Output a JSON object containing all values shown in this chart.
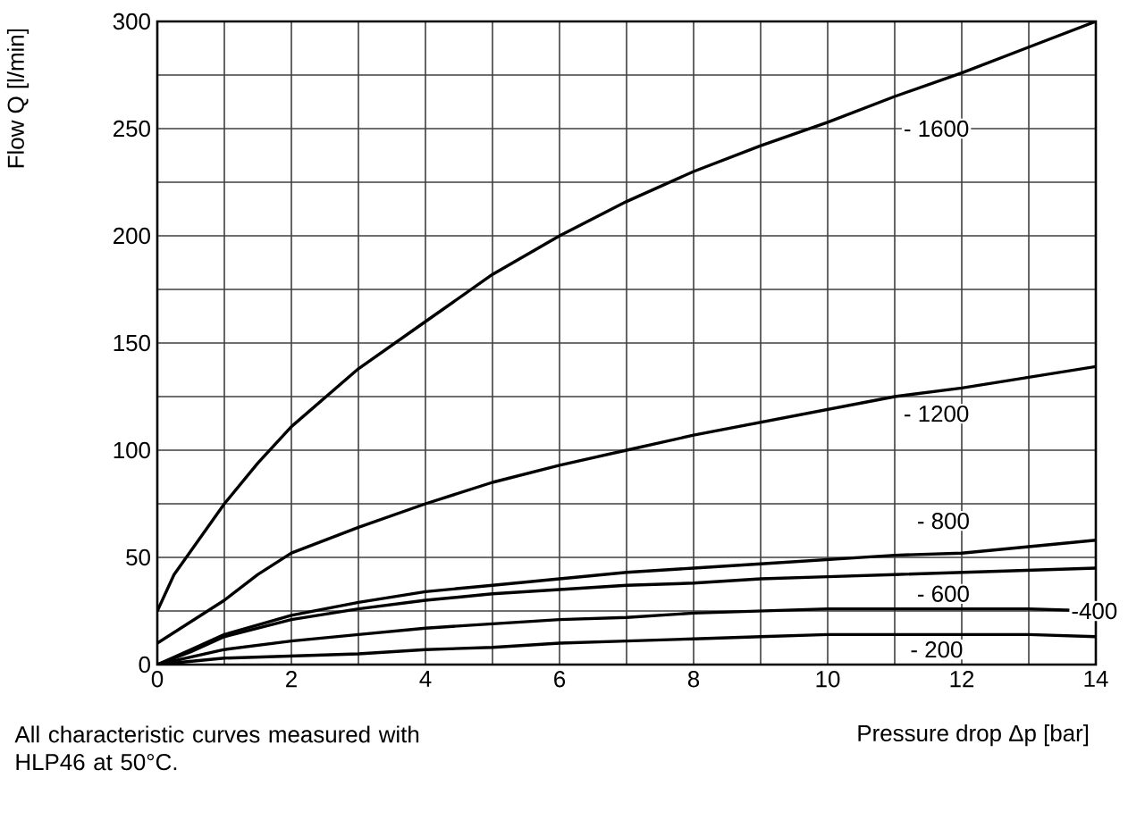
{
  "chart_data": {
    "type": "line",
    "xlabel": "Pressure drop Δp [bar]",
    "ylabel": "Flow Q [l/min]",
    "xlim": [
      0,
      14
    ],
    "ylim": [
      0,
      300
    ],
    "xticks": [
      0,
      {
        "value": 1,
        "label": null
      },
      2,
      {
        "value": 3,
        "label": null
      },
      4,
      {
        "value": 5,
        "label": null
      },
      6,
      {
        "value": 7,
        "label": null
      },
      8,
      {
        "value": 9,
        "label": null
      },
      10,
      {
        "value": 11,
        "label": null
      },
      12,
      {
        "value": 13,
        "label": null
      },
      14
    ],
    "yticks": [
      0,
      {
        "value": 25,
        "label": null
      },
      50,
      {
        "value": 75,
        "label": null
      },
      100,
      {
        "value": 125,
        "label": null
      },
      150,
      {
        "value": 175,
        "label": null
      },
      200,
      {
        "value": 225,
        "label": null
      },
      250,
      {
        "value": 275,
        "label": null
      },
      300
    ],
    "grid": true,
    "marker": "none",
    "line_style": "solid",
    "series": [
      {
        "name": "- 1600",
        "color": "#000000",
        "x": [
          0,
          0.25,
          0.5,
          1,
          1.5,
          2,
          3,
          4,
          5,
          6,
          7,
          8,
          9,
          10,
          11,
          12,
          13,
          14
        ],
        "values": [
          25,
          42,
          53,
          75,
          94,
          111,
          138,
          160,
          182,
          200,
          216,
          230,
          242,
          253,
          265,
          276,
          288,
          300
        ]
      },
      {
        "name": "- 1200",
        "color": "#000000",
        "x": [
          0,
          0.5,
          1,
          1.5,
          2,
          3,
          4,
          5,
          6,
          7,
          8,
          9,
          10,
          11,
          12,
          13,
          14
        ],
        "values": [
          10,
          20,
          30,
          42,
          52,
          64,
          75,
          85,
          93,
          100,
          107,
          113,
          119,
          125,
          129,
          134,
          139
        ]
      },
      {
        "name": "- 800",
        "color": "#000000",
        "x": [
          0,
          0.5,
          1,
          2,
          3,
          4,
          5,
          6,
          7,
          8,
          9,
          10,
          11,
          12,
          13,
          14
        ],
        "values": [
          0,
          7,
          14,
          23,
          29,
          34,
          37,
          40,
          43,
          45,
          47,
          49,
          51,
          52,
          55,
          58
        ]
      },
      {
        "name": "- 600",
        "color": "#000000",
        "x": [
          0,
          0.5,
          1,
          2,
          3,
          4,
          5,
          6,
          7,
          8,
          9,
          10,
          11,
          12,
          13,
          14
        ],
        "values": [
          0,
          6,
          13,
          21,
          26,
          30,
          33,
          35,
          37,
          38,
          40,
          41,
          42,
          43,
          44,
          45
        ]
      },
      {
        "name": "-400",
        "color": "#000000",
        "x": [
          0,
          1,
          2,
          3,
          4,
          5,
          6,
          7,
          8,
          9,
          10,
          11,
          12,
          13,
          14
        ],
        "values": [
          0,
          7,
          11,
          14,
          17,
          19,
          21,
          22,
          24,
          25,
          26,
          26,
          26,
          26,
          25
        ]
      },
      {
        "name": "- 200",
        "color": "#000000",
        "x": [
          0,
          1,
          2,
          3,
          4,
          5,
          6,
          7,
          8,
          9,
          10,
          11,
          12,
          13,
          14
        ],
        "values": [
          0,
          3,
          4,
          5,
          7,
          8,
          10,
          11,
          12,
          13,
          14,
          14,
          14,
          14,
          13
        ]
      }
    ],
    "annotations": [
      "All characteristic curves measured with HLP46 at 50°C."
    ]
  }
}
